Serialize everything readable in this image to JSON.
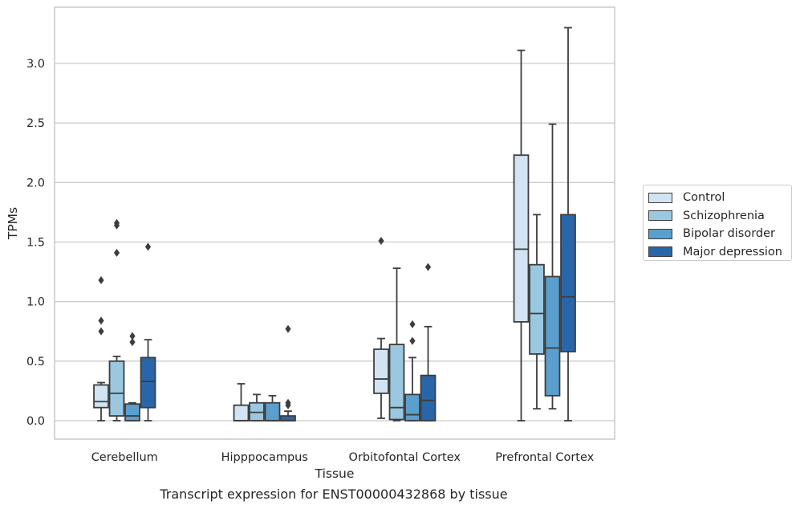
{
  "chart_data": {
    "type": "boxplot",
    "title": "Transcript expression for ENST00000432868 by tissue",
    "xlabel": "Tissue",
    "ylabel": "TPMs",
    "ylim": [
      -0.16,
      3.39
    ],
    "yticks": [
      "0.0",
      "0.5",
      "1.0",
      "1.5",
      "2.0",
      "2.5",
      "3.0"
    ],
    "grid": "horizontal",
    "legend_position": "right",
    "categories": [
      "Cerebellum",
      "Hipppocampus",
      "Orbitofontal Cortex",
      "Prefrontal Cortex"
    ],
    "series": [
      {
        "name": "Control",
        "color": "#d2e3f3",
        "boxes": [
          {
            "whisker_low": 0.0,
            "q1": 0.11,
            "median": 0.16,
            "q3": 0.3,
            "whisker_high": 0.32,
            "outliers": [
              1.18,
              0.84,
              0.75
            ]
          },
          {
            "whisker_low": 0.0,
            "q1": 0.0,
            "median": 0.0,
            "q3": 0.13,
            "whisker_high": 0.31,
            "outliers": []
          },
          {
            "whisker_low": 0.02,
            "q1": 0.23,
            "median": 0.35,
            "q3": 0.6,
            "whisker_high": 0.69,
            "outliers": [
              1.51
            ]
          },
          {
            "whisker_low": 0.0,
            "q1": 0.83,
            "median": 1.44,
            "q3": 2.23,
            "whisker_high": 3.11,
            "outliers": []
          }
        ]
      },
      {
        "name": "Schizophrenia",
        "color": "#9ac8e0",
        "boxes": [
          {
            "whisker_low": 0.0,
            "q1": 0.04,
            "median": 0.23,
            "q3": 0.5,
            "whisker_high": 0.54,
            "outliers": [
              1.66,
              1.64,
              1.41
            ]
          },
          {
            "whisker_low": 0.0,
            "q1": 0.0,
            "median": 0.07,
            "q3": 0.15,
            "whisker_high": 0.22,
            "outliers": []
          },
          {
            "whisker_low": 0.0,
            "q1": 0.01,
            "median": 0.11,
            "q3": 0.64,
            "whisker_high": 1.28,
            "outliers": []
          },
          {
            "whisker_low": 0.1,
            "q1": 0.56,
            "median": 0.9,
            "q3": 1.31,
            "whisker_high": 1.73,
            "outliers": []
          }
        ]
      },
      {
        "name": "Bipolar disorder",
        "color": "#5a9fcd",
        "boxes": [
          {
            "whisker_low": 0.0,
            "q1": 0.0,
            "median": 0.04,
            "q3": 0.14,
            "whisker_high": 0.15,
            "outliers": [
              0.71,
              0.66
            ]
          },
          {
            "whisker_low": 0.0,
            "q1": 0.0,
            "median": 0.0,
            "q3": 0.15,
            "whisker_high": 0.21,
            "outliers": []
          },
          {
            "whisker_low": 0.0,
            "q1": 0.0,
            "median": 0.05,
            "q3": 0.22,
            "whisker_high": 0.53,
            "outliers": [
              0.81,
              0.67
            ]
          },
          {
            "whisker_low": 0.1,
            "q1": 0.21,
            "median": 0.61,
            "q3": 1.21,
            "whisker_high": 2.49,
            "outliers": []
          }
        ]
      },
      {
        "name": "Major depression",
        "color": "#2966a9",
        "boxes": [
          {
            "whisker_low": 0.0,
            "q1": 0.11,
            "median": 0.33,
            "q3": 0.53,
            "whisker_high": 0.68,
            "outliers": [
              1.46
            ]
          },
          {
            "whisker_low": 0.0,
            "q1": 0.0,
            "median": 0.0,
            "q3": 0.04,
            "whisker_high": 0.08,
            "outliers": [
              0.77,
              0.15,
              0.13
            ]
          },
          {
            "whisker_low": 0.0,
            "q1": 0.0,
            "median": 0.17,
            "q3": 0.38,
            "whisker_high": 0.79,
            "outliers": [
              1.29
            ]
          },
          {
            "whisker_low": 0.0,
            "q1": 0.58,
            "median": 1.04,
            "q3": 1.73,
            "whisker_high": 3.3,
            "outliers": []
          }
        ]
      }
    ]
  }
}
